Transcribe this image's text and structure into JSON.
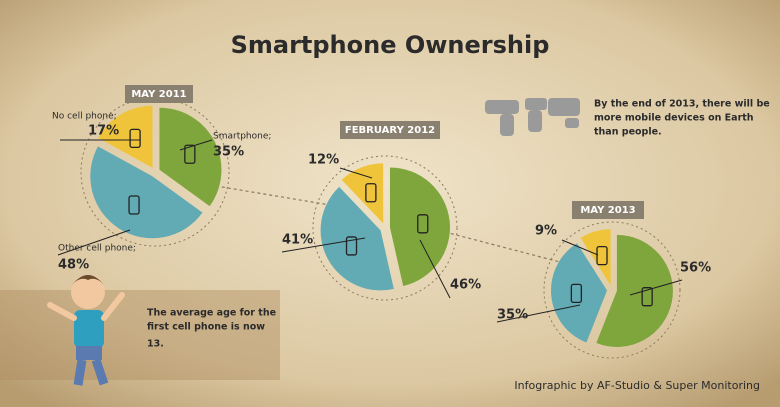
{
  "title": "Smartphone Ownership",
  "chart_data": [
    {
      "type": "pie",
      "title": "MAY 2011",
      "categories": [
        "Smartphone;",
        "Other cell phone;",
        "No cell phone;"
      ],
      "values": [
        35,
        48,
        17
      ],
      "value_labels": [
        "35%",
        "48%",
        "17%"
      ],
      "colors": [
        "#7fa63c",
        "#62aab4",
        "#f0c43a"
      ]
    },
    {
      "type": "pie",
      "title": "FEBRUARY 2012",
      "values": [
        46,
        41,
        12
      ],
      "value_labels": [
        "46%",
        "41%",
        "12%"
      ],
      "colors": [
        "#7fa63c",
        "#62aab4",
        "#f0c43a"
      ]
    },
    {
      "type": "pie",
      "title": "MAY 2013",
      "values": [
        56,
        35,
        9
      ],
      "value_labels": [
        "56%",
        "35%",
        "9%"
      ],
      "colors": [
        "#7fa63c",
        "#62aab4",
        "#f0c43a"
      ]
    }
  ],
  "notes": [
    "By the end of 2013, there will be",
    "more mobile devices on Earth",
    "than people."
  ],
  "age_note": [
    "The average age for the",
    "first cell phone is now",
    "13."
  ],
  "credit": "Infographic by AF-Studio & Super Monitoring"
}
